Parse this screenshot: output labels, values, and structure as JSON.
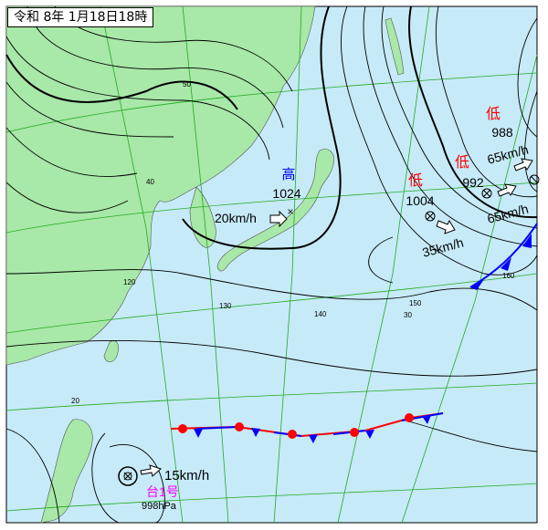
{
  "title": "令和 8年 1月18日18時",
  "colors": {
    "sea": "#c6eaf8",
    "land": "#a8e8a8",
    "grid": "#22aa22",
    "high": "#0000ff",
    "low": "#ff0000",
    "typhoon": "#ff00ff"
  },
  "grid_labels": {
    "lat": [
      "50",
      "40",
      "30",
      "20"
    ],
    "lon": [
      "120",
      "130",
      "140",
      "150",
      "160"
    ]
  },
  "high": {
    "symbol": "高",
    "pressure": "1024",
    "speed": "20km/h"
  },
  "lows": [
    {
      "symbol": "低",
      "pressure": "1004",
      "speed": "35km/h"
    },
    {
      "symbol": "低",
      "pressure": "992",
      "speed": "65km/h"
    },
    {
      "symbol": "低",
      "pressure": "988",
      "speed": "65km/h"
    }
  ],
  "typhoon": {
    "name": "台1号",
    "pressure": "998hPa",
    "speed": "15km/h"
  }
}
